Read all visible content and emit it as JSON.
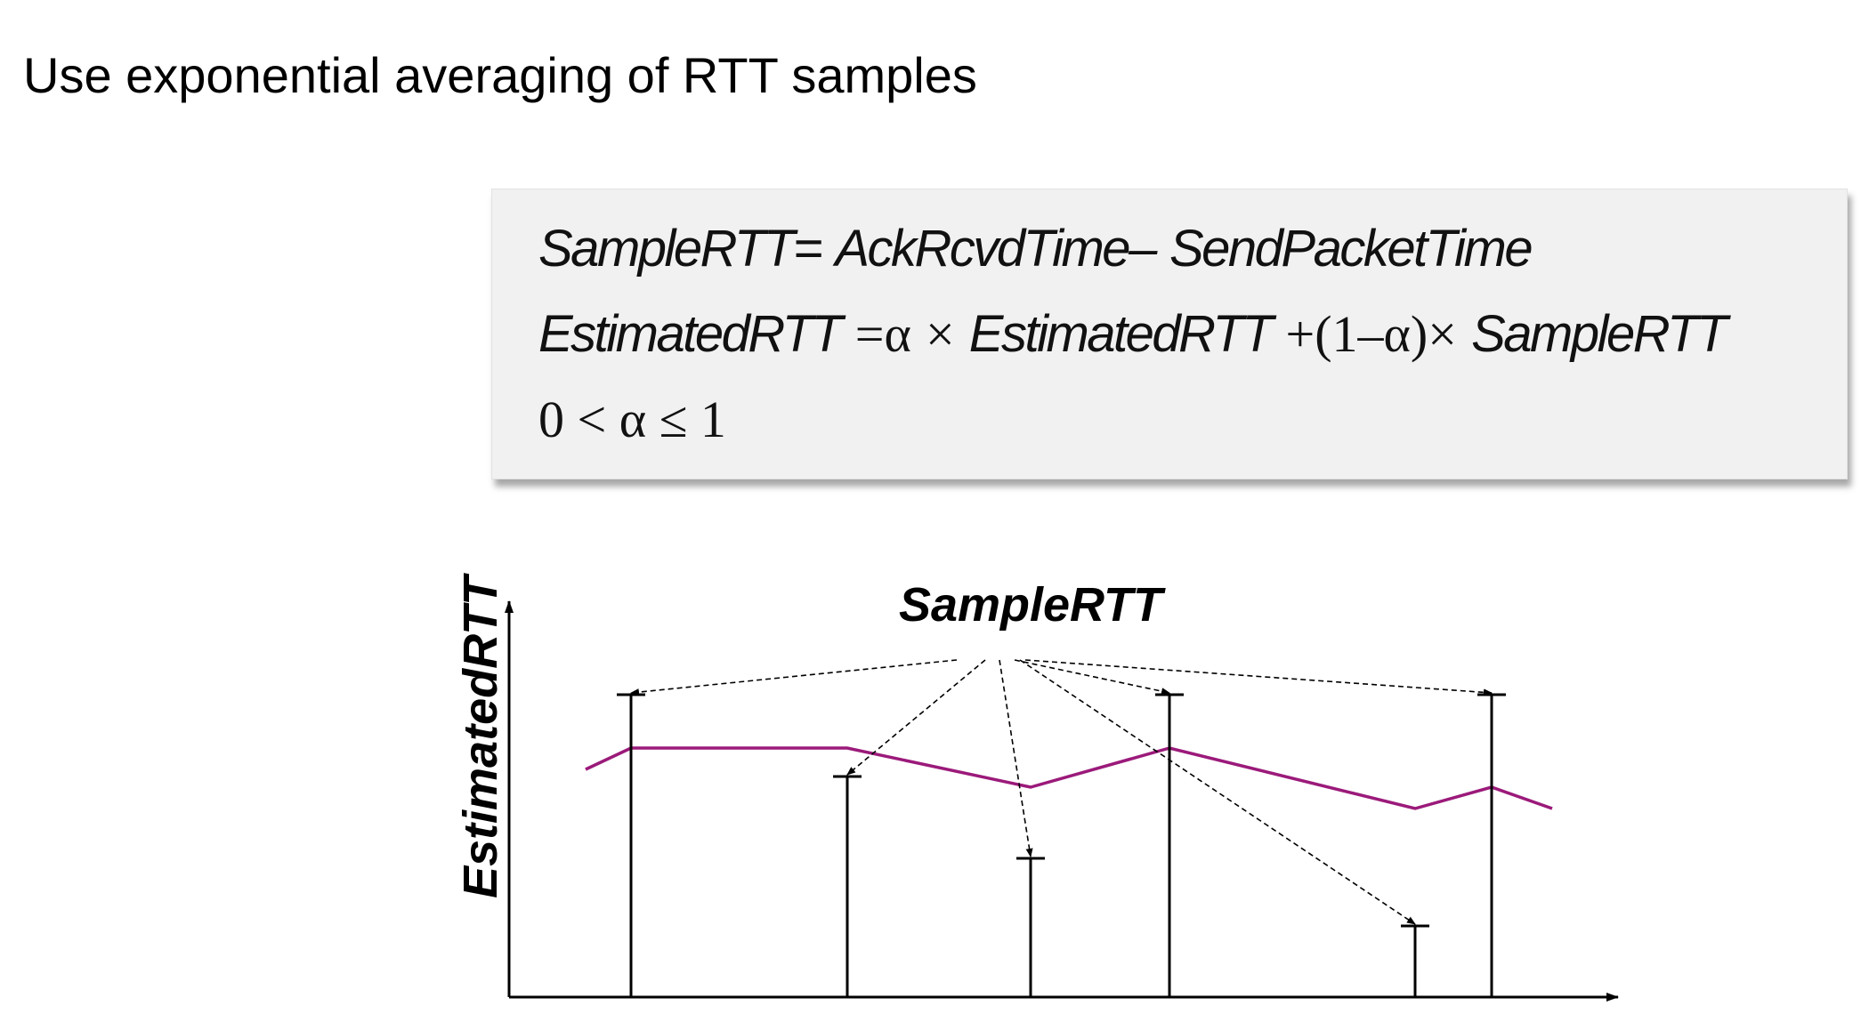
{
  "header": {
    "title": "Use exponential averaging of RTT samples"
  },
  "formula": {
    "line1": {
      "lhs": "SampleRTT",
      "eq": "=",
      "a": "AckRcvdTime",
      "minus": "–",
      "b": "SendPacketTime"
    },
    "line2": {
      "lhs": "EstimatedRTT",
      "eq": "=",
      "alpha": "α",
      "times": "×",
      "est": "EstimatedRTT",
      "plus": "+",
      "paren": "(1–α)",
      "times2": "×",
      "sample": "SampleRTT"
    },
    "line3": {
      "text": "0 < α ≤ 1"
    }
  },
  "diagram": {
    "y_axis_label": "EstimatedRTT",
    "sample_label": "SampleRTT",
    "colors": {
      "estimate_line": "#9b1a7a",
      "ink": "#000000",
      "box": "#f1f1f1"
    },
    "samples": [
      {
        "t": 1,
        "value": 0.85
      },
      {
        "t": 2,
        "value": 0.62
      },
      {
        "t": 3,
        "value": 0.39
      },
      {
        "t": 4,
        "value": 0.85
      },
      {
        "t": 5,
        "value": 0.2
      },
      {
        "t": 6,
        "value": 0.85
      }
    ],
    "estimate": [
      {
        "t": 0.35,
        "value": 0.64
      },
      {
        "t": 1,
        "value": 0.7
      },
      {
        "t": 2,
        "value": 0.7
      },
      {
        "t": 3,
        "value": 0.59
      },
      {
        "t": 4,
        "value": 0.7
      },
      {
        "t": 5,
        "value": 0.53
      },
      {
        "t": 6,
        "value": 0.59
      },
      {
        "t": 6.4,
        "value": 0.53
      }
    ]
  }
}
